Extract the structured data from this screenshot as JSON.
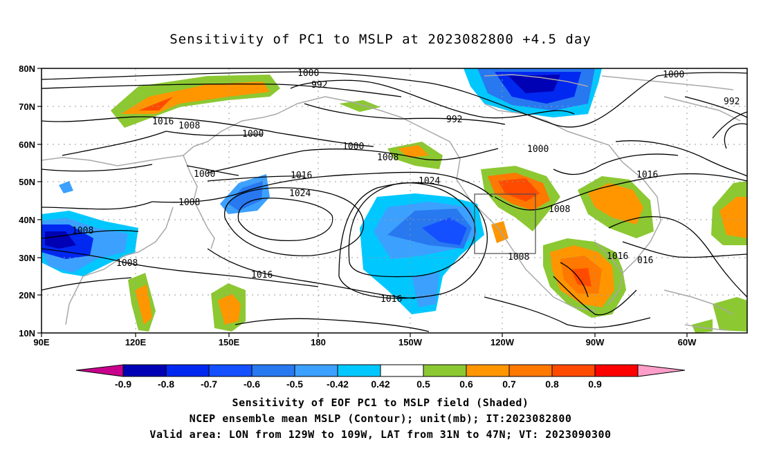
{
  "title": "Sensitivity of PC1 to MSLP at 2023082800 +4.5 day",
  "lat_ticks": [
    "80N",
    "70N",
    "60N",
    "50N",
    "40N",
    "30N",
    "20N",
    "10N"
  ],
  "lon_ticks": [
    "90E",
    "120E",
    "150E",
    "180",
    "150W",
    "120W",
    "90W",
    "60W"
  ],
  "contour_labels": [
    "1000",
    "1000",
    "992",
    "992",
    "992",
    "1016",
    "1008",
    "1000",
    "1000",
    "1008",
    "1000",
    "1016",
    "1016",
    "1000",
    "1008",
    "1024",
    "1024",
    "1008",
    "1008",
    "1008",
    "1016",
    "1016",
    "1016",
    "1008",
    "1016",
    "016"
  ],
  "colorbar": {
    "labels": [
      "-0.9",
      "-0.8",
      "-0.7",
      "-0.6",
      "-0.5",
      "-0.42",
      "0.42",
      "0.5",
      "0.6",
      "0.7",
      "0.8",
      "0.9"
    ],
    "colors": [
      "#0000b4",
      "#0028f0",
      "#1450ff",
      "#2878f0",
      "#3ca0ff",
      "#00c8ff",
      "#ffffff",
      "#8cc832",
      "#ff9600",
      "#ff7800",
      "#ff4b00",
      "#ff0000"
    ],
    "low_end_color": "#c8008c",
    "high_end_color": "#ff9ec8"
  },
  "footer": {
    "line1": "Sensitivity of EOF PC1 to MSLP field (Shaded)",
    "line2": "NCEP ensemble mean MSLP (Contour); unit(mb); IT:2023082800",
    "line3": "Valid area: LON from 129W to 109W, LAT from 31N to 47N; VT: 2023090300"
  }
}
